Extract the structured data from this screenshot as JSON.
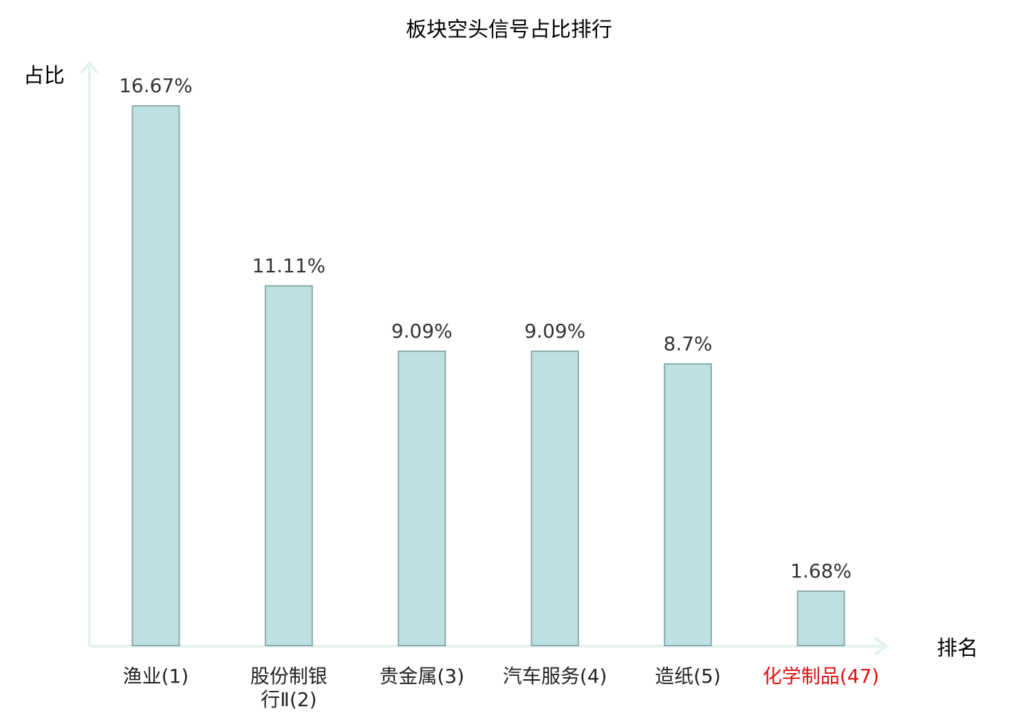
{
  "chart_data": {
    "type": "bar",
    "title": "板块空头信号占比排行",
    "ylabel": "占比",
    "xlabel": "排名",
    "categories": [
      [
        "渔业(1)"
      ],
      [
        "股份制银",
        "行Ⅱ(2)"
      ],
      [
        "贵金属(3)"
      ],
      [
        "汽车服务(4)"
      ],
      [
        "造纸(5)"
      ],
      [
        "化学制品(47)"
      ]
    ],
    "values": [
      16.67,
      11.11,
      9.09,
      9.09,
      8.7,
      1.68
    ],
    "value_labels": [
      "16.67%",
      "11.11%",
      "9.09%",
      "9.09%",
      "8.7%",
      "1.68%"
    ],
    "highlight_index": 5,
    "ylim": [
      0,
      16.67
    ],
    "grid": false,
    "colors": {
      "bar_fill": "#bde0e3",
      "bar_stroke": "#8aa9ab",
      "axis": "#e2f2ef",
      "highlight_text": "#e01010"
    }
  }
}
